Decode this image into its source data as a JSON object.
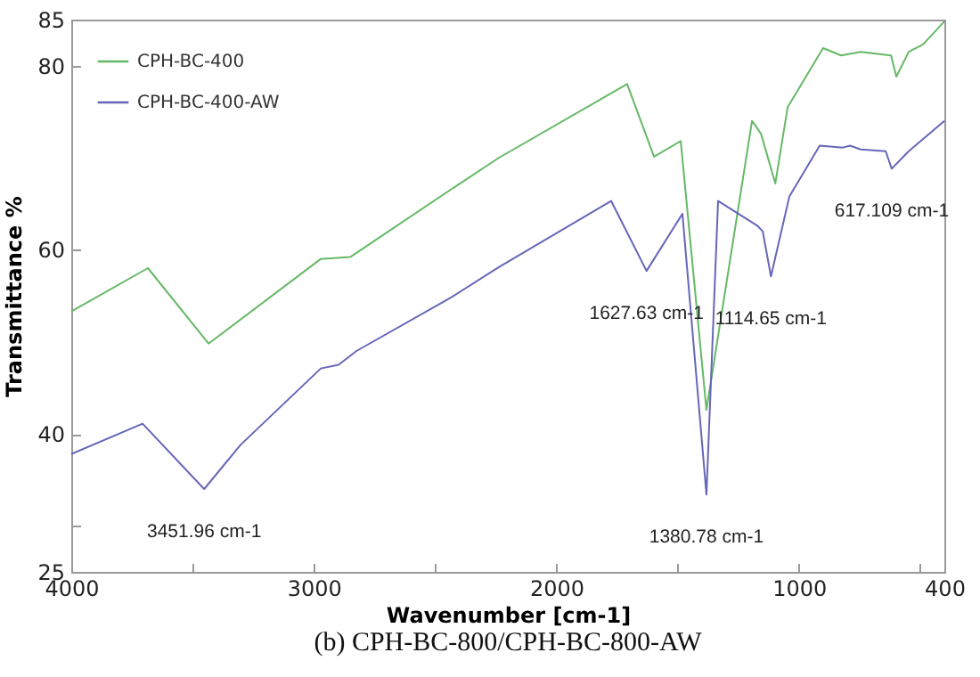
{
  "chart_data": {
    "type": "line",
    "xlabel": "Wavenumber [cm-1]",
    "ylabel": "Transmittance %",
    "legend": "top left",
    "xlim": [
      4000,
      400
    ],
    "ylim": [
      25,
      85
    ],
    "xticks": [
      4000,
      {
        "value": 3500,
        "label": null
      },
      3000,
      {
        "value": 2500,
        "label": null
      },
      2000,
      {
        "value": 1500,
        "label": null
      },
      1000,
      {
        "value": 500,
        "label": null
      },
      400
    ],
    "yticks": [
      25,
      {
        "value": 30,
        "label": null
      },
      40,
      60,
      80,
      85
    ],
    "series": [
      {
        "name": "CPH-BC-400",
        "color": "#66b866",
        "x": [
          4000,
          3684,
          3434,
          2971,
          2850,
          2420,
          2236,
          1708,
          1597,
          1487,
          1381,
          1193,
          1156,
          1097,
          1046,
          900,
          826,
          745,
          620,
          598,
          547,
          488,
          400
        ],
        "values": [
          53.3,
          58,
          49.8,
          59,
          59.2,
          66.8,
          70,
          78,
          70.1,
          71.8,
          42.6,
          74,
          72.6,
          67.2,
          75.5,
          81.9,
          81.1,
          81.5,
          81.1,
          78.8,
          81.5,
          82.3,
          84.8
        ]
      },
      {
        "name": "CPH-BC-400-AW",
        "color": "#6666b8",
        "x": [
          4000,
          3706,
          3452,
          3302,
          2971,
          2898,
          2824,
          2435,
          2237,
          1774,
          1628,
          1480,
          1381,
          1333,
          1171,
          1149,
          1115,
          1039,
          914,
          818,
          789,
          745,
          642,
          617,
          547,
          400
        ],
        "values": [
          37.8,
          41.1,
          34,
          38.8,
          47.1,
          47.5,
          49,
          54.8,
          58.1,
          65.3,
          57.7,
          63.9,
          33.4,
          65.3,
          62.6,
          62,
          57.1,
          65.8,
          71.3,
          71.1,
          71.3,
          70.9,
          70.7,
          68.8,
          70.7,
          74
        ]
      }
    ],
    "annotations": [
      {
        "text": "3451.96 cm-1",
        "x": 3452,
        "y": 34
      },
      {
        "text": "1627.63 cm-1",
        "x": 1628,
        "y": 57.7
      },
      {
        "text": "1380.78 cm-1",
        "x": 1381,
        "y": 33.4
      },
      {
        "text": "1114.65 cm-1",
        "x": 1115,
        "y": 57.1
      },
      {
        "text": "617.109 cm-1",
        "x": 617,
        "y": 68.8
      },
      "(b) CPH-BC-800/CPH-BC-800-AW"
    ]
  }
}
